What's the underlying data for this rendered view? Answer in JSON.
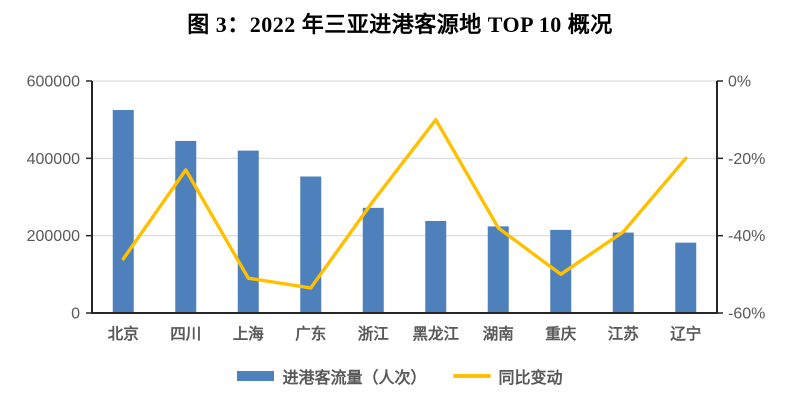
{
  "title": "图 3：2022 年三亚进港客源地 TOP 10 概况",
  "legend": {
    "items": [
      {
        "label": "进港客流量（人次）",
        "swatch": "bar",
        "color": "#4e80bc"
      },
      {
        "label": "同比变动",
        "swatch": "line",
        "color": "#ffc000"
      }
    ]
  },
  "chart_data": {
    "type": "bar",
    "subtype": "bar+line combo, dual axis",
    "title": "图 3：2022 年三亚进港客源地 TOP 10 概况",
    "categories": [
      "北京",
      "四川",
      "上海",
      "广东",
      "浙江",
      "黑龙江",
      "湖南",
      "重庆",
      "江苏",
      "辽宁"
    ],
    "series": [
      {
        "name": "进港客流量（人次）",
        "chart_type": "bar",
        "axis": "left",
        "color": "#4e80bc",
        "values": [
          525000,
          445000,
          420000,
          353000,
          272000,
          238000,
          224000,
          215000,
          208000,
          182000
        ]
      },
      {
        "name": "同比变动",
        "chart_type": "line",
        "axis": "right",
        "color": "#ffc000",
        "values": [
          -46,
          -23,
          -51,
          -53.5,
          -31,
          -10,
          -38,
          -50,
          -39,
          -20
        ]
      }
    ],
    "left_axis": {
      "min": 0,
      "max": 600000,
      "tick_step": 200000,
      "tick_labels": [
        "0",
        "200000",
        "400000",
        "600000"
      ]
    },
    "right_axis": {
      "min": -60,
      "max": 0,
      "tick_step": 20,
      "tick_labels": [
        "0%",
        "-20%",
        "-40%",
        "-60%"
      ]
    },
    "grid": true,
    "legend_position": "bottom"
  },
  "colors": {
    "bar": "#4e80bc",
    "line": "#ffc000",
    "grid": "#d9d9d9",
    "axis": "#262626",
    "tick_label": "#595959",
    "category_label": "#595959",
    "title": "#000000",
    "background": "#ffffff"
  }
}
